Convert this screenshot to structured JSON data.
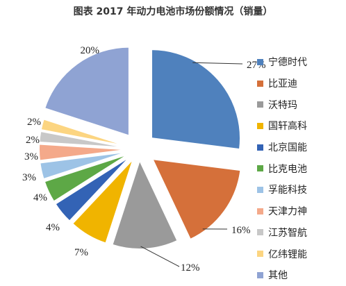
{
  "chart_data": {
    "type": "pie",
    "title": "图表  2017 年动力电池市场份额情况（销量）",
    "legend_position": "right",
    "slices": [
      {
        "label": "宁德时代",
        "value": 27,
        "value_label": "27%",
        "color": "#4f81bd"
      },
      {
        "label": "比亚迪",
        "value": 16,
        "value_label": "16%",
        "color": "#d5703a"
      },
      {
        "label": "沃特玛",
        "value": 12,
        "value_label": "12%",
        "color": "#9a9a9a"
      },
      {
        "label": "国轩高科",
        "value": 7,
        "value_label": "7%",
        "color": "#f0b400"
      },
      {
        "label": "北京国能",
        "value": 4,
        "value_label": "4%",
        "color": "#3363b5"
      },
      {
        "label": "比克电池",
        "value": 4,
        "value_label": "4%",
        "color": "#5da846"
      },
      {
        "label": "孚能科技",
        "value": 3,
        "value_label": "3%",
        "color": "#9dc3e6"
      },
      {
        "label": "天津力神",
        "value": 3,
        "value_label": "3%",
        "color": "#f4a98a"
      },
      {
        "label": "江苏智航",
        "value": 2,
        "value_label": "2%",
        "color": "#c8c8c8"
      },
      {
        "label": "亿纬锂能",
        "value": 2,
        "value_label": "2%",
        "color": "#fcd581"
      },
      {
        "label": "其他",
        "value": 20,
        "value_label": "20%",
        "color": "#8fa3d3"
      }
    ]
  }
}
